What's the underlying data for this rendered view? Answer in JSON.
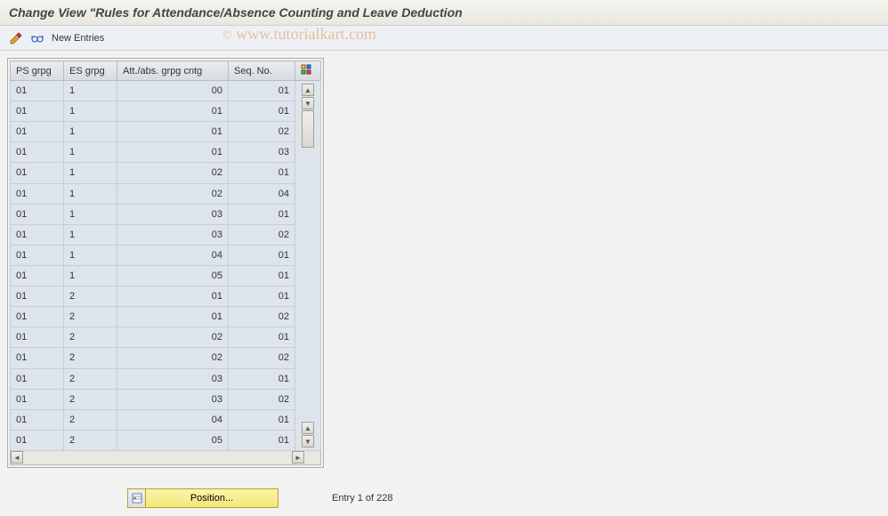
{
  "title": "Change View \"Rules for Attendance/Absence Counting and Leave Deduction",
  "toolbar": {
    "new_entries_label": "New Entries"
  },
  "watermark": {
    "copyright": "©",
    "url": "www.tutorialkart.com"
  },
  "columns": {
    "ps_grpg": "PS grpg",
    "es_grpg": "ES grpg",
    "att_abs": "Att./abs. grpg cntg",
    "seq_no": "Seq. No."
  },
  "rows": [
    {
      "ps": "01",
      "es": "1",
      "att": "00",
      "seq": "01"
    },
    {
      "ps": "01",
      "es": "1",
      "att": "01",
      "seq": "01"
    },
    {
      "ps": "01",
      "es": "1",
      "att": "01",
      "seq": "02"
    },
    {
      "ps": "01",
      "es": "1",
      "att": "01",
      "seq": "03"
    },
    {
      "ps": "01",
      "es": "1",
      "att": "02",
      "seq": "01"
    },
    {
      "ps": "01",
      "es": "1",
      "att": "02",
      "seq": "04"
    },
    {
      "ps": "01",
      "es": "1",
      "att": "03",
      "seq": "01"
    },
    {
      "ps": "01",
      "es": "1",
      "att": "03",
      "seq": "02"
    },
    {
      "ps": "01",
      "es": "1",
      "att": "04",
      "seq": "01"
    },
    {
      "ps": "01",
      "es": "1",
      "att": "05",
      "seq": "01"
    },
    {
      "ps": "01",
      "es": "2",
      "att": "01",
      "seq": "01"
    },
    {
      "ps": "01",
      "es": "2",
      "att": "01",
      "seq": "02"
    },
    {
      "ps": "01",
      "es": "2",
      "att": "02",
      "seq": "01"
    },
    {
      "ps": "01",
      "es": "2",
      "att": "02",
      "seq": "02"
    },
    {
      "ps": "01",
      "es": "2",
      "att": "03",
      "seq": "01"
    },
    {
      "ps": "01",
      "es": "2",
      "att": "03",
      "seq": "02"
    },
    {
      "ps": "01",
      "es": "2",
      "att": "04",
      "seq": "01"
    },
    {
      "ps": "01",
      "es": "2",
      "att": "05",
      "seq": "01"
    }
  ],
  "footer": {
    "position_label": "Position...",
    "entry_text": "Entry 1 of 228"
  },
  "colors": {
    "header_bg": "#e8ecf0",
    "cell_bg": "#dde4ec",
    "border": "#b8bcc2",
    "body_bg": "#f2f2f2",
    "btn_bg": "#f5e67a",
    "watermark": "rgba(226,149,82,0.55)"
  }
}
